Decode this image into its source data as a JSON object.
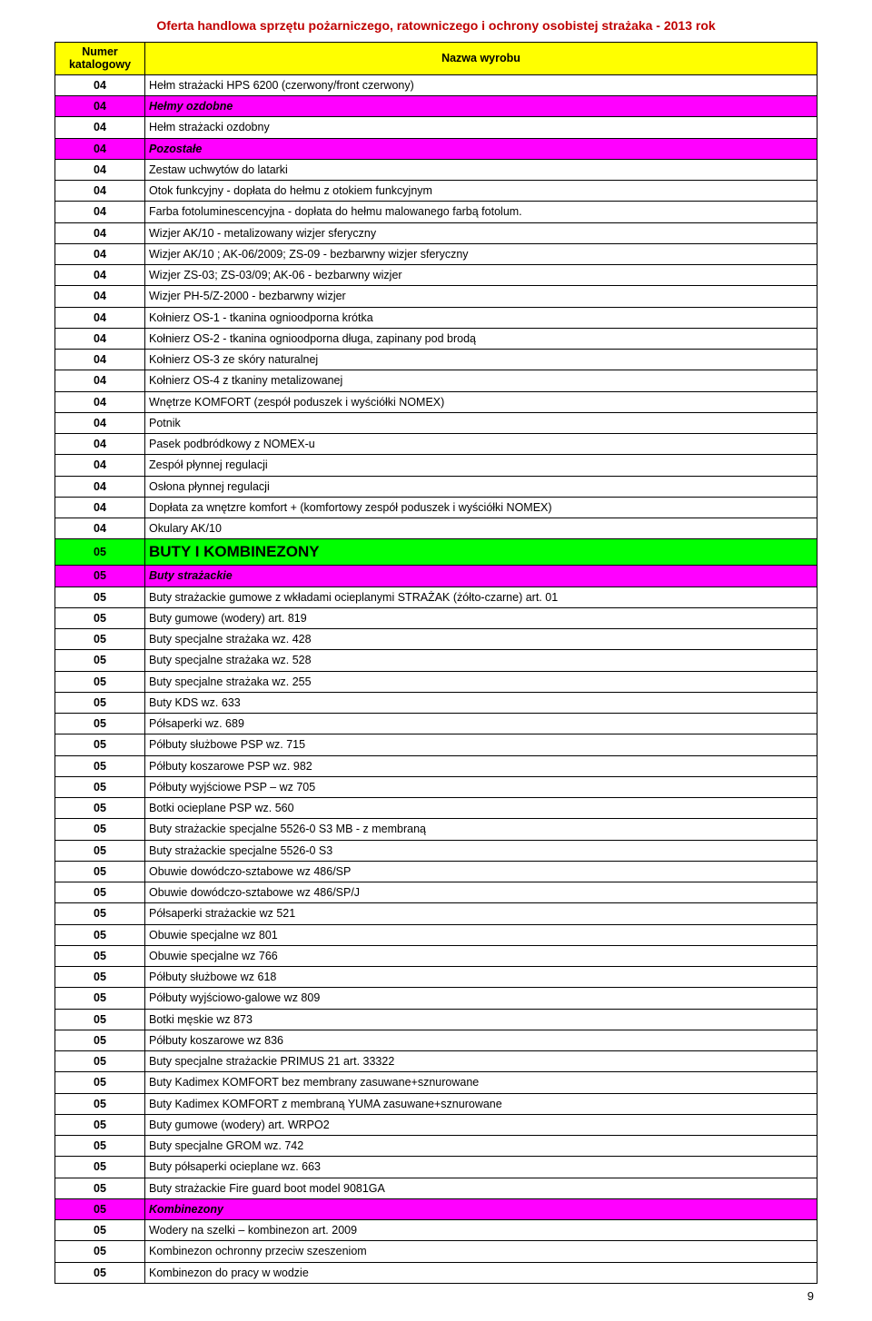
{
  "doc_title": "Oferta handlowa sprzętu pożarniczego, ratowniczego i ochrony osobistej strażaka - 2013 rok",
  "header": {
    "col1_line1": "Numer",
    "col1_line2": "katalogowy",
    "col2": "Nazwa wyrobu"
  },
  "page_number": "9",
  "rows": [
    {
      "num": "04",
      "name": "Hełm strażacki HPS 6200 (czerwony/front czerwony)",
      "style": ""
    },
    {
      "num": "04",
      "name": "Hełmy ozdobne",
      "style": "magenta"
    },
    {
      "num": "04",
      "name": "Hełm strażacki ozdobny",
      "style": ""
    },
    {
      "num": "04",
      "name": "Pozostałe",
      "style": "magenta"
    },
    {
      "num": "04",
      "name": "Zestaw uchwytów do latarki",
      "style": ""
    },
    {
      "num": "04",
      "name": "Otok funkcyjny - dopłata do hełmu z otokiem funkcyjnym",
      "style": ""
    },
    {
      "num": "04",
      "name": "Farba fotoluminescencyjna - dopłata do hełmu malowanego farbą fotolum.",
      "style": ""
    },
    {
      "num": "04",
      "name": "Wizjer AK/10 - metalizowany wizjer sferyczny",
      "style": ""
    },
    {
      "num": "04",
      "name": "Wizjer AK/10 ; AK-06/2009; ZS-09 - bezbarwny wizjer sferyczny",
      "style": ""
    },
    {
      "num": "04",
      "name": "Wizjer ZS-03; ZS-03/09; AK-06 - bezbarwny wizjer",
      "style": ""
    },
    {
      "num": "04",
      "name": "Wizjer PH-5/Z-2000 - bezbarwny wizjer",
      "style": ""
    },
    {
      "num": "04",
      "name": "Kołnierz OS-1 - tkanina ognioodporna krótka",
      "style": ""
    },
    {
      "num": "04",
      "name": "Kołnierz OS-2 - tkanina ognioodporna długa, zapinany pod brodą",
      "style": ""
    },
    {
      "num": "04",
      "name": "Kołnierz OS-3 ze skóry naturalnej",
      "style": ""
    },
    {
      "num": "04",
      "name": "Kołnierz OS-4 z tkaniny metalizowanej",
      "style": ""
    },
    {
      "num": "04",
      "name": "Wnętrze KOMFORT (zespół poduszek i wyściółki NOMEX)",
      "style": ""
    },
    {
      "num": "04",
      "name": "Potnik",
      "style": ""
    },
    {
      "num": "04",
      "name": "Pasek podbródkowy z NOMEX-u",
      "style": ""
    },
    {
      "num": "04",
      "name": "Zespół płynnej regulacji",
      "style": ""
    },
    {
      "num": "04",
      "name": "Osłona płynnej regulacji",
      "style": ""
    },
    {
      "num": "04",
      "name": "Dopłata za wnętzre komfort + (komfortowy zespół poduszek i wyściółki NOMEX)",
      "style": ""
    },
    {
      "num": "04",
      "name": "Okulary AK/10",
      "style": ""
    },
    {
      "num": "05",
      "name": "BUTY I KOMBINEZONY",
      "style": "green"
    },
    {
      "num": "05",
      "name": "Buty strażackie",
      "style": "magenta"
    },
    {
      "num": "05",
      "name": "Buty strażackie gumowe z wkładami ocieplanymi STRAŻAK (żółto-czarne) art. 01",
      "style": ""
    },
    {
      "num": "05",
      "name": "Buty gumowe (wodery) art. 819",
      "style": ""
    },
    {
      "num": "05",
      "name": "Buty specjalne strażaka wz. 428",
      "style": ""
    },
    {
      "num": "05",
      "name": "Buty specjalne strażaka wz. 528",
      "style": ""
    },
    {
      "num": "05",
      "name": "Buty specjalne strażaka wz. 255",
      "style": ""
    },
    {
      "num": "05",
      "name": "Buty KDS wz. 633",
      "style": ""
    },
    {
      "num": "05",
      "name": "Półsaperki  wz. 689",
      "style": ""
    },
    {
      "num": "05",
      "name": "Półbuty służbowe PSP wz. 715",
      "style": ""
    },
    {
      "num": "05",
      "name": "Półbuty koszarowe PSP wz. 982",
      "style": ""
    },
    {
      "num": "05",
      "name": "Półbuty wyjściowe PSP – wz 705",
      "style": ""
    },
    {
      "num": "05",
      "name": "Botki ocieplane PSP wz. 560",
      "style": ""
    },
    {
      "num": "05",
      "name": "Buty strażackie specjalne 5526-0 S3 MB - z membraną",
      "style": ""
    },
    {
      "num": "05",
      "name": "Buty strażackie specjalne 5526-0 S3",
      "style": ""
    },
    {
      "num": "05",
      "name": "Obuwie dowódczo-sztabowe wz 486/SP",
      "style": ""
    },
    {
      "num": "05",
      "name": "Obuwie dowódczo-sztabowe wz 486/SP/J",
      "style": ""
    },
    {
      "num": "05",
      "name": "Półsaperki strażackie wz 521",
      "style": ""
    },
    {
      "num": "05",
      "name": "Obuwie specjalne wz 801",
      "style": ""
    },
    {
      "num": "05",
      "name": "Obuwie specjalne wz 766",
      "style": ""
    },
    {
      "num": "05",
      "name": "Półbuty służbowe wz 618",
      "style": ""
    },
    {
      "num": "05",
      "name": "Półbuty wyjściowo-galowe wz 809",
      "style": ""
    },
    {
      "num": "05",
      "name": "Botki męskie wz 873",
      "style": ""
    },
    {
      "num": "05",
      "name": "Półbuty koszarowe  wz 836",
      "style": ""
    },
    {
      "num": "05",
      "name": "Buty specjalne strażackie PRIMUS 21 art. 33322",
      "style": ""
    },
    {
      "num": "05",
      "name": "Buty Kadimex KOMFORT bez membrany zasuwane+sznurowane",
      "style": ""
    },
    {
      "num": "05",
      "name": "Buty Kadimex KOMFORT z membraną YUMA zasuwane+sznurowane",
      "style": ""
    },
    {
      "num": "05",
      "name": "Buty gumowe (wodery) art. WRPO2",
      "style": ""
    },
    {
      "num": "05",
      "name": "Buty specjalne GROM wz. 742",
      "style": ""
    },
    {
      "num": "05",
      "name": "Buty półsaperki ocieplane wz. 663",
      "style": ""
    },
    {
      "num": "05",
      "name": "Buty strażackie Fire guard boot model 9081GA",
      "style": ""
    },
    {
      "num": "05",
      "name": "Kombinezony",
      "style": "magenta"
    },
    {
      "num": "05",
      "name": "Wodery na szelki – kombinezon art. 2009",
      "style": ""
    },
    {
      "num": "05",
      "name": "Kombinezon ochronny przeciw szeszeniom",
      "style": ""
    },
    {
      "num": "05",
      "name": "Kombinezon do pracy w wodzie",
      "style": ""
    }
  ]
}
